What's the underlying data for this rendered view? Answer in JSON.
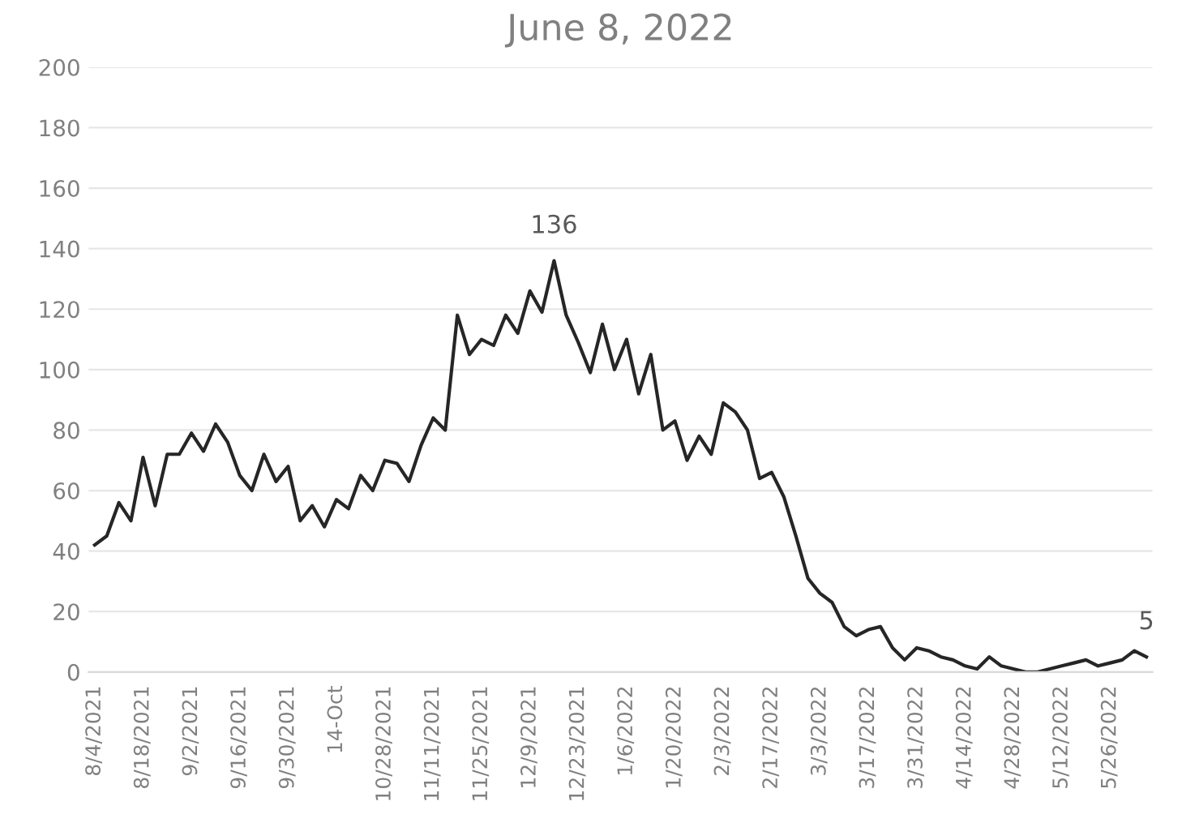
{
  "chart_data": {
    "type": "line",
    "title": "June 8, 2022",
    "categories": [
      "8/4/2021",
      null,
      null,
      null,
      "8/18/2021",
      null,
      null,
      null,
      "9/2/2021",
      null,
      null,
      null,
      "9/16/2021",
      null,
      null,
      null,
      "9/30/2021",
      null,
      null,
      null,
      "14-Oct",
      null,
      null,
      null,
      "10/28/2021",
      null,
      null,
      null,
      "11/11/2021",
      null,
      null,
      null,
      "11/25/2021",
      null,
      null,
      null,
      "12/9/2021",
      null,
      null,
      null,
      "12/23/2021",
      null,
      null,
      null,
      "1/6/2022",
      null,
      null,
      null,
      "1/20/2022",
      null,
      null,
      null,
      "2/3/2022",
      null,
      null,
      null,
      "2/17/2022",
      null,
      null,
      null,
      "3/3/2022",
      null,
      null,
      null,
      "3/17/2022",
      null,
      null,
      null,
      "3/31/2022",
      null,
      null,
      null,
      "4/14/2022",
      null,
      null,
      null,
      "4/28/2022",
      null,
      null,
      null,
      "5/12/2022",
      null,
      null,
      null,
      "5/26/2022",
      null,
      null,
      null
    ],
    "series": [
      {
        "color": "#262626",
        "values": [
          42,
          45,
          56,
          50,
          71,
          55,
          72,
          72,
          79,
          73,
          82,
          76,
          65,
          60,
          72,
          63,
          68,
          50,
          55,
          48,
          57,
          54,
          65,
          60,
          70,
          69,
          63,
          75,
          84,
          80,
          118,
          105,
          110,
          108,
          118,
          112,
          126,
          119,
          136,
          118,
          109,
          99,
          115,
          100,
          110,
          92,
          105,
          80,
          83,
          70,
          78,
          72,
          89,
          86,
          80,
          64,
          66,
          58,
          45,
          31,
          26,
          23,
          15,
          12,
          14,
          15,
          8,
          4,
          8,
          7,
          5,
          4,
          2,
          1,
          5,
          2,
          1,
          0,
          0,
          1,
          2,
          3,
          4,
          2,
          3,
          4,
          7,
          5
        ],
        "value_labels": [
          null,
          null,
          null,
          null,
          null,
          null,
          null,
          null,
          null,
          null,
          null,
          null,
          null,
          null,
          null,
          null,
          null,
          null,
          null,
          null,
          null,
          null,
          null,
          null,
          null,
          null,
          null,
          null,
          null,
          null,
          null,
          null,
          null,
          null,
          null,
          null,
          null,
          null,
          "136",
          null,
          null,
          null,
          null,
          null,
          null,
          null,
          null,
          null,
          null,
          null,
          null,
          null,
          null,
          null,
          null,
          null,
          null,
          null,
          null,
          null,
          null,
          null,
          null,
          null,
          null,
          null,
          null,
          null,
          null,
          null,
          null,
          null,
          null,
          null,
          null,
          null,
          null,
          null,
          null,
          null,
          null,
          null,
          null,
          null,
          null,
          null,
          null,
          "5"
        ]
      }
    ],
    "ylim": [
      0,
      200
    ],
    "yticks": [
      0,
      20,
      40,
      60,
      80,
      100,
      120,
      140,
      160,
      180,
      200
    ],
    "grid": "y",
    "marker": "none",
    "line_style": "solid"
  }
}
